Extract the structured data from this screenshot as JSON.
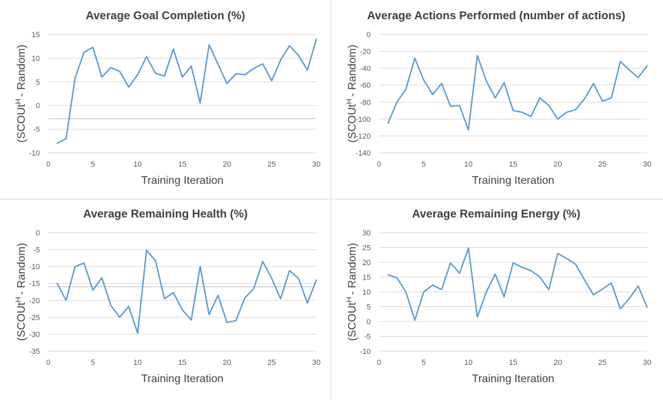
{
  "chart_data": [
    {
      "type": "line",
      "title": "Average Goal Completion (%)",
      "xlabel": "Training Iteration",
      "ylabel_main": "(SCOUt",
      "ylabel_sup": "H",
      "ylabel_rest": "- Random)",
      "xlim": [
        0,
        30
      ],
      "ylim": [
        -10,
        15
      ],
      "xticks": [
        0,
        5,
        10,
        15,
        20,
        25,
        30
      ],
      "yticks": [
        -10,
        -5,
        0,
        5,
        10,
        15
      ],
      "grid": true,
      "reference_line": -2.8,
      "series": [
        {
          "x": [
            1,
            2,
            3,
            4,
            5,
            6,
            7,
            8,
            9,
            10,
            11,
            12,
            13,
            14,
            15,
            16,
            17,
            18,
            19,
            20,
            21,
            22,
            23,
            24,
            25,
            26,
            27,
            28,
            29,
            30
          ],
          "values": [
            -8,
            -7,
            5.8,
            11.2,
            12.3,
            6,
            8,
            7.2,
            3.9,
            6.5,
            10.3,
            6.8,
            6.2,
            11.9,
            6,
            8.3,
            0.5,
            12.8,
            8.7,
            4.6,
            6.7,
            6.5,
            7.8,
            8.8,
            5.2,
            9.6,
            12.6,
            10.6,
            7.5,
            14
          ]
        }
      ]
    },
    {
      "type": "line",
      "title": "Average Actions Performed (number of actions)",
      "xlabel": "Training Iteration",
      "ylabel_main": "(SCOUt",
      "ylabel_sup": "H",
      "ylabel_rest": "- Random)",
      "xlim": [
        0,
        30
      ],
      "ylim": [
        -140,
        0
      ],
      "xticks": [
        0,
        5,
        10,
        15,
        20,
        25,
        30
      ],
      "yticks": [
        -140,
        -120,
        -100,
        -80,
        -60,
        -40,
        -20,
        0
      ],
      "grid": true,
      "series": [
        {
          "x": [
            1,
            2,
            3,
            4,
            5,
            6,
            7,
            8,
            9,
            10,
            11,
            12,
            13,
            14,
            15,
            16,
            17,
            18,
            19,
            20,
            21,
            22,
            23,
            24,
            25,
            26,
            27,
            28,
            29,
            30
          ],
          "values": [
            -105,
            -80,
            -65,
            -28,
            -54,
            -71,
            -58,
            -85,
            -84,
            -113,
            -25,
            -55,
            -75,
            -57,
            -90,
            -92,
            -97,
            -75,
            -84,
            -100,
            -92,
            -89,
            -76,
            -58,
            -79,
            -75,
            -32,
            -42,
            -51,
            -37
          ]
        }
      ]
    },
    {
      "type": "line",
      "title": "Average Remaining Health (%)",
      "xlabel": "Training Iteration",
      "ylabel_main": "(SCOUt",
      "ylabel_sup": "H",
      "ylabel_rest": "- Random)",
      "xlim": [
        0,
        30
      ],
      "ylim": [
        -35,
        0
      ],
      "xticks": [
        0,
        5,
        10,
        15,
        20,
        25,
        30
      ],
      "yticks": [
        -35,
        -30,
        -25,
        -20,
        -15,
        -10,
        -5,
        0
      ],
      "grid": true,
      "reference_line": -16,
      "series": [
        {
          "x": [
            1,
            2,
            3,
            4,
            5,
            6,
            7,
            8,
            9,
            10,
            11,
            12,
            13,
            14,
            15,
            16,
            17,
            18,
            19,
            20,
            21,
            22,
            23,
            24,
            25,
            26,
            27,
            28,
            29,
            30
          ],
          "values": [
            -15,
            -20,
            -10,
            -9,
            -17,
            -13.3,
            -21.5,
            -25,
            -21.8,
            -29.7,
            -5.2,
            -8.3,
            -19.5,
            -17.7,
            -22.8,
            -25.8,
            -10,
            -24.2,
            -18.5,
            -26.5,
            -26,
            -19.3,
            -16.5,
            -8.5,
            -13.5,
            -19.5,
            -11.2,
            -13.5,
            -20.8,
            -14
          ]
        }
      ]
    },
    {
      "type": "line",
      "title": "Average Remaining Energy (%)",
      "xlabel": "Training Iteration",
      "ylabel_main": "(SCOUt",
      "ylabel_sup": "H",
      "ylabel_rest": "- Random)",
      "xlim": [
        0,
        30
      ],
      "ylim": [
        -10,
        30
      ],
      "xticks": [
        0,
        5,
        10,
        15,
        20,
        25,
        30
      ],
      "yticks": [
        -10,
        -5,
        0,
        5,
        10,
        15,
        20,
        25,
        30
      ],
      "grid": true,
      "series": [
        {
          "x": [
            1,
            2,
            3,
            4,
            5,
            6,
            7,
            8,
            9,
            10,
            11,
            12,
            13,
            14,
            15,
            16,
            17,
            18,
            19,
            20,
            21,
            22,
            23,
            24,
            25,
            26,
            27,
            28,
            29,
            30
          ],
          "values": [
            15.8,
            14.8,
            10,
            0.5,
            10,
            12.3,
            10.8,
            19.8,
            16.3,
            24.8,
            1.5,
            10,
            16,
            8.3,
            19.8,
            18.3,
            17.2,
            15,
            10.8,
            23,
            21.3,
            19.3,
            14,
            9,
            11,
            13,
            4.3,
            7.8,
            12,
            4.8
          ]
        }
      ]
    }
  ]
}
